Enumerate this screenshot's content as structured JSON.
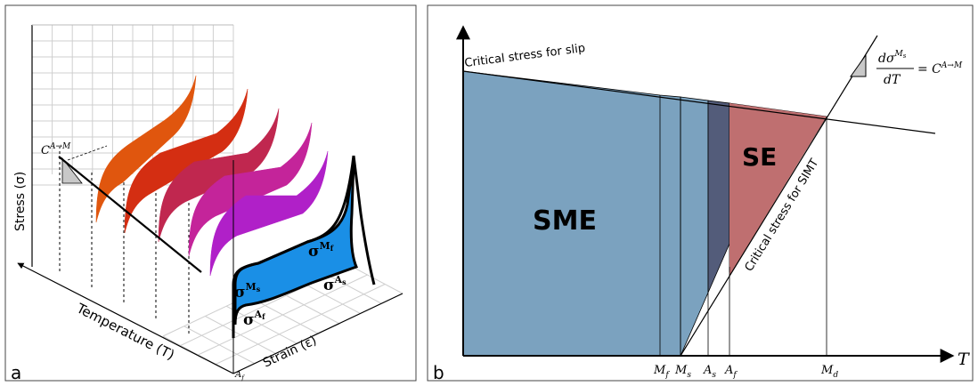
{
  "panel_a": {
    "letter": "a",
    "axis_stress": "Stress (σ)",
    "axis_temperature": "Temperature (T)",
    "axis_strain": "Strain (ε)",
    "slope_label": "C",
    "slope_sup": "A→M",
    "sigma_base": "σ",
    "sup_Mf": "M",
    "sub_Mf": "f",
    "sup_Ms": "M",
    "sub_Ms": "s",
    "sup_As": "A",
    "sub_As": "s",
    "sup_Af": "A",
    "sub_Af": "f",
    "af_tick_base": "A",
    "af_tick_sub": "f",
    "loop_colors": [
      "#e0560e",
      "#d42e12",
      "#c0274f",
      "#c4249a",
      "#b020c8",
      "#1a8fe6"
    ]
  },
  "panel_b": {
    "letter": "b",
    "slip_label": "Critical stress for slip",
    "simt_label": "Critical stress for SIMT",
    "sme_label": "SME",
    "se_label": "SE",
    "t_axis": "T",
    "eq_num_d": "d",
    "eq_num_sigma": "σ",
    "eq_num_sup_base": "M",
    "eq_num_sup_sub": "s",
    "eq_den": "dT",
    "eq_rhs_base": "= C",
    "eq_rhs_sup": "A→M",
    "ticks": [
      {
        "base": "M",
        "sub": "f"
      },
      {
        "base": "M",
        "sub": "s"
      },
      {
        "base": "A",
        "sub": "s"
      },
      {
        "base": "A",
        "sub": "f"
      },
      {
        "base": "M",
        "sub": "d"
      }
    ],
    "colors": {
      "sme": "#7ba2bf",
      "dark": "#535c7a",
      "se": "#bf6f70",
      "triangle": "#c8c8c8"
    }
  }
}
